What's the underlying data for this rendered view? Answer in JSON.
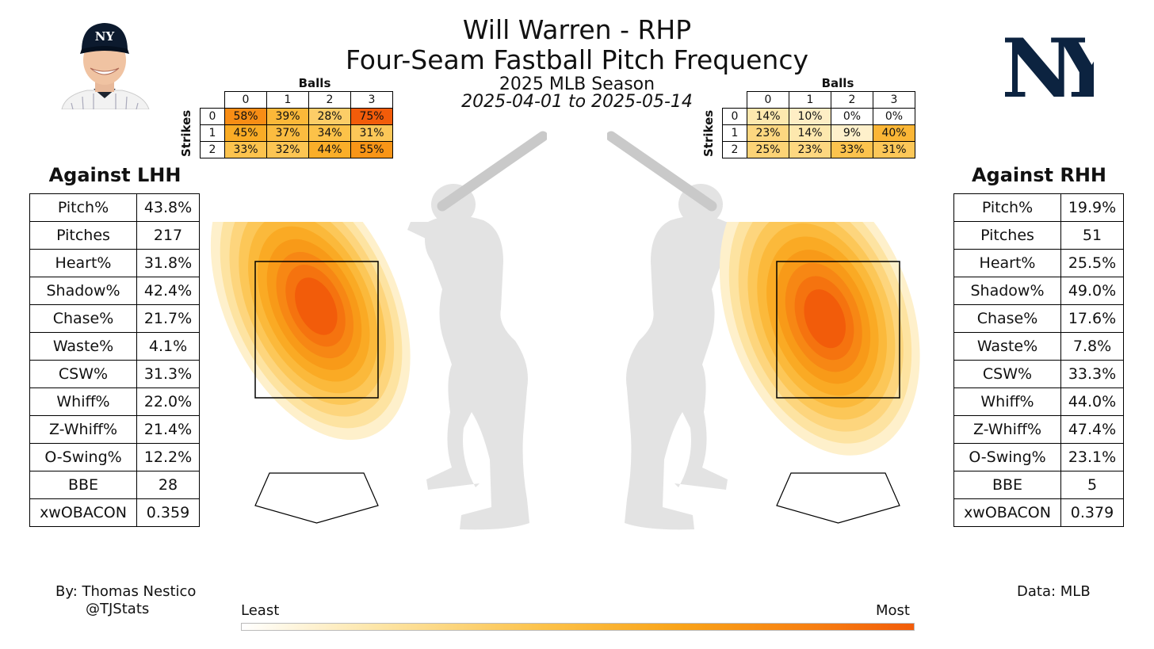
{
  "header": {
    "title": "Will Warren - RHP",
    "subtitle": "Four-Seam Fastball Pitch Frequency",
    "season": "2025 MLB Season",
    "date_range": "2025-04-01 to 2025-05-14"
  },
  "credits": {
    "by_line": "By: Thomas Nestico",
    "handle": "@TJStats",
    "source": "Data: MLB"
  },
  "scale": {
    "least": "Least",
    "most": "Most"
  },
  "colors": {
    "low": "#ffffff",
    "mid": "#fcc24a",
    "high": "#f25c0a",
    "logo_navy": "#0c2340"
  },
  "icons": [
    "player-headshot",
    "ny-yankees-logo",
    "batter-silhouette-left",
    "batter-silhouette-right"
  ],
  "chart_data": [
    {
      "type": "table",
      "name": "Against LHH",
      "rows": [
        {
          "label": "Pitch%",
          "value": "43.8%"
        },
        {
          "label": "Pitches",
          "value": "217"
        },
        {
          "label": "Heart%",
          "value": "31.8%"
        },
        {
          "label": "Shadow%",
          "value": "42.4%"
        },
        {
          "label": "Chase%",
          "value": "21.7%"
        },
        {
          "label": "Waste%",
          "value": "4.1%"
        },
        {
          "label": "CSW%",
          "value": "31.3%"
        },
        {
          "label": "Whiff%",
          "value": "22.0%"
        },
        {
          "label": "Z-Whiff%",
          "value": "21.4%"
        },
        {
          "label": "O-Swing%",
          "value": "12.2%"
        },
        {
          "label": "BBE",
          "value": "28"
        },
        {
          "label": "xwOBACON",
          "value": "0.359"
        }
      ]
    },
    {
      "type": "table",
      "name": "Against RHH",
      "rows": [
        {
          "label": "Pitch%",
          "value": "19.9%"
        },
        {
          "label": "Pitches",
          "value": "51"
        },
        {
          "label": "Heart%",
          "value": "25.5%"
        },
        {
          "label": "Shadow%",
          "value": "49.0%"
        },
        {
          "label": "Chase%",
          "value": "17.6%"
        },
        {
          "label": "Waste%",
          "value": "7.8%"
        },
        {
          "label": "CSW%",
          "value": "33.3%"
        },
        {
          "label": "Whiff%",
          "value": "44.0%"
        },
        {
          "label": "Z-Whiff%",
          "value": "47.4%"
        },
        {
          "label": "O-Swing%",
          "value": "23.1%"
        },
        {
          "label": "BBE",
          "value": "5"
        },
        {
          "label": "xwOBACON",
          "value": "0.379"
        }
      ]
    },
    {
      "type": "heatmap",
      "name": "Count usage vs LHH",
      "xlabel": "Balls",
      "ylabel": "Strikes",
      "balls": [
        "0",
        "1",
        "2",
        "3"
      ],
      "strikes": [
        "0",
        "1",
        "2"
      ],
      "values": [
        [
          58,
          39,
          28,
          75
        ],
        [
          45,
          37,
          34,
          31
        ],
        [
          33,
          32,
          44,
          55
        ]
      ],
      "labels": [
        [
          "58%",
          "39%",
          "28%",
          "75%"
        ],
        [
          "45%",
          "37%",
          "34%",
          "31%"
        ],
        [
          "33%",
          "32%",
          "44%",
          "55%"
        ]
      ]
    },
    {
      "type": "heatmap",
      "name": "Count usage vs RHH",
      "xlabel": "Balls",
      "ylabel": "Strikes",
      "balls": [
        "0",
        "1",
        "2",
        "3"
      ],
      "strikes": [
        "0",
        "1",
        "2"
      ],
      "values": [
        [
          14,
          10,
          0,
          0
        ],
        [
          23,
          14,
          9,
          40
        ],
        [
          25,
          23,
          33,
          31
        ]
      ],
      "labels": [
        [
          "14%",
          "10%",
          "0%",
          "0%"
        ],
        [
          "23%",
          "14%",
          "9%",
          "40%"
        ],
        [
          "25%",
          "23%",
          "33%",
          "31%"
        ]
      ]
    },
    {
      "type": "heatmap",
      "name": "Location density vs LHH",
      "density_peak": [
        -0.05,
        0.6
      ],
      "spread": [
        0.35,
        0.55
      ],
      "tilt_deg": -25
    },
    {
      "type": "heatmap",
      "name": "Location density vs RHH",
      "density_peak": [
        -0.15,
        0.35
      ],
      "spread": [
        0.4,
        0.55
      ],
      "tilt_deg": -20
    }
  ]
}
